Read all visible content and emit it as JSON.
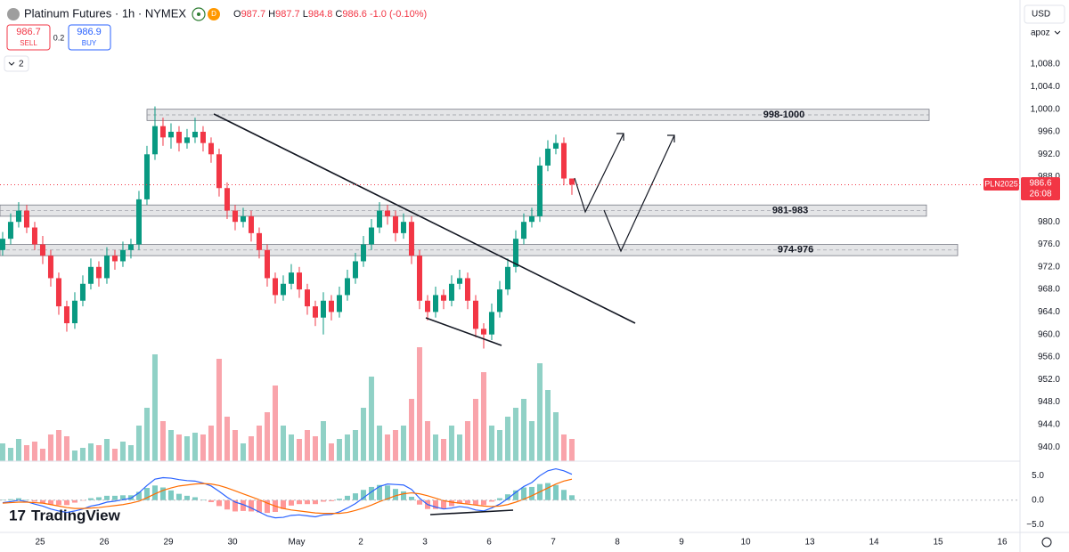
{
  "header": {
    "symbol": "Platinum Futures · 1h · NYMEX",
    "ohlc": [
      {
        "label": "O",
        "value": 987.7
      },
      {
        "label": "H",
        "value": 987.7
      },
      {
        "label": "L",
        "value": 984.8
      },
      {
        "label": "C",
        "value": 986.6
      }
    ],
    "change": "-1.0 (-0.10%)",
    "sell": {
      "price": 986.7,
      "label": "SELL"
    },
    "spread": 0.2,
    "buy": {
      "price": 986.9,
      "label": "BUY"
    },
    "indicators_count": 2,
    "currency": "USD",
    "user": "apoz",
    "brand": "TradingView"
  },
  "chart_data": {
    "type": "candlestick",
    "x": [
      0,
      1,
      2,
      3,
      4,
      5,
      6,
      7,
      8,
      9,
      10,
      11,
      12,
      13,
      14,
      15,
      16,
      17,
      18,
      19,
      20,
      21,
      22,
      23,
      24,
      25,
      26,
      27,
      28,
      29,
      30,
      31,
      32,
      33,
      34,
      35,
      36,
      37,
      38,
      39,
      40,
      41,
      42,
      43,
      44,
      45,
      46,
      47,
      48,
      49,
      50,
      51,
      52,
      53,
      54,
      55,
      56,
      57,
      58,
      59,
      60,
      61,
      62,
      63,
      64,
      65,
      66,
      67,
      68,
      69,
      70,
      71
    ],
    "open": [
      975,
      977,
      980,
      982,
      979,
      976,
      974,
      970,
      965,
      962,
      966,
      969,
      972,
      970,
      974,
      973,
      975,
      976,
      984,
      992,
      997,
      995,
      996,
      994,
      995,
      996,
      994,
      992,
      986,
      982,
      980,
      981,
      978,
      975,
      970,
      967,
      969,
      971,
      968,
      965,
      963,
      966,
      964,
      967,
      970,
      973,
      976,
      979,
      982,
      981,
      978,
      980,
      974,
      966,
      964,
      967,
      966,
      969,
      970,
      966,
      961,
      960,
      964,
      968,
      972,
      977,
      980,
      981,
      990,
      993,
      994,
      987.7
    ],
    "high": [
      978.2,
      981.5,
      983.5,
      983,
      980,
      977.5,
      975,
      971,
      966,
      967.5,
      970.5,
      973.5,
      973,
      975.5,
      975,
      976.5,
      977,
      985.5,
      993.5,
      1000.5,
      998.5,
      997.5,
      997,
      996.5,
      998.5,
      997,
      995,
      993,
      987,
      983,
      982.5,
      982,
      979,
      976,
      971,
      970.5,
      972.5,
      972,
      969,
      966,
      967.5,
      967,
      968.5,
      971.5,
      974.5,
      977.5,
      980.5,
      983.5,
      983,
      982,
      981.5,
      981,
      975,
      967,
      968.5,
      968,
      970.5,
      971.5,
      971,
      967,
      962,
      965.5,
      969.5,
      973.5,
      978.5,
      981.5,
      982.5,
      991.5,
      994.5,
      995.5,
      995,
      987.7
    ],
    "low": [
      974,
      976,
      979,
      978,
      975,
      972.5,
      968.5,
      963.5,
      960.5,
      961,
      965,
      968,
      968.5,
      969,
      971.5,
      972,
      973.5,
      975,
      983,
      991,
      993.5,
      993,
      992.5,
      993,
      994,
      992.5,
      990.5,
      984.5,
      980.5,
      978.5,
      979,
      976.5,
      973.5,
      968.5,
      965.5,
      966,
      968,
      966.5,
      963.5,
      961.5,
      960,
      962.5,
      963,
      966,
      969,
      972,
      975,
      978,
      979.5,
      976.5,
      977,
      972.5,
      964.5,
      962.5,
      963,
      964.5,
      965,
      968,
      964.5,
      959.5,
      957.5,
      959,
      963,
      967,
      971,
      976,
      979,
      980,
      989,
      992,
      986.5,
      984.8
    ],
    "close": [
      977,
      980,
      982,
      979,
      976,
      974,
      970,
      965,
      962,
      966,
      969,
      972,
      970,
      974,
      973,
      975,
      976,
      984,
      992,
      997,
      995,
      996,
      994,
      995,
      996,
      994,
      992,
      986,
      982,
      980,
      981,
      978,
      975,
      970,
      967,
      969,
      971,
      968,
      965,
      963,
      966,
      964,
      967,
      970,
      973,
      976,
      979,
      982,
      981,
      978,
      980,
      974,
      966,
      964,
      967,
      966,
      969,
      970,
      966,
      961,
      960,
      964,
      968,
      972,
      977,
      980,
      981,
      990,
      993,
      994,
      987.7,
      986.6
    ],
    "volume": [
      20,
      15,
      25,
      18,
      22,
      14,
      30,
      35,
      28,
      12,
      15,
      20,
      18,
      25,
      14,
      22,
      18,
      40,
      60,
      120,
      45,
      35,
      30,
      28,
      32,
      30,
      40,
      115,
      50,
      35,
      20,
      28,
      40,
      55,
      85,
      40,
      30,
      25,
      35,
      28,
      45,
      20,
      25,
      30,
      35,
      60,
      95,
      40,
      30,
      35,
      40,
      70,
      128,
      45,
      30,
      25,
      40,
      30,
      45,
      70,
      100,
      40,
      35,
      50,
      60,
      70,
      45,
      110,
      80,
      55,
      30,
      25
    ],
    "up_color": "#089981",
    "down_color": "#f23645",
    "xlim": [
      -0.33,
      126.89
    ],
    "xticks": [
      {
        "value": 4.67,
        "label": "25"
      },
      {
        "value": 12.67,
        "label": "26"
      },
      {
        "value": 20.67,
        "label": "29"
      },
      {
        "value": 28.67,
        "label": "30"
      },
      {
        "value": 36.67,
        "label": "May"
      },
      {
        "value": 44.67,
        "label": "2"
      },
      {
        "value": 52.67,
        "label": "3"
      },
      {
        "value": 60.67,
        "label": "6"
      },
      {
        "value": 68.67,
        "label": "7"
      },
      {
        "value": 76.67,
        "label": "8"
      },
      {
        "value": 84.67,
        "label": "9"
      },
      {
        "value": 92.67,
        "label": "10"
      },
      {
        "value": 100.67,
        "label": "13"
      },
      {
        "value": 108.67,
        "label": "14"
      },
      {
        "value": 116.67,
        "label": "15"
      },
      {
        "value": 124.67,
        "label": "16"
      }
    ],
    "ylim": [
      937.5,
      1019.4
    ],
    "yticks": [
      {
        "value": 1008,
        "label": "1,008.0"
      },
      {
        "value": 1004,
        "label": "1,004.0"
      },
      {
        "value": 1000,
        "label": "1,000.0"
      },
      {
        "value": 996,
        "label": "996.0"
      },
      {
        "value": 992,
        "label": "992.0"
      },
      {
        "value": 988,
        "label": "988.0"
      },
      {
        "value": 980,
        "label": "980.0"
      },
      {
        "value": 976,
        "label": "976.0"
      },
      {
        "value": 972,
        "label": "972.0"
      },
      {
        "value": 968,
        "label": "968.0"
      },
      {
        "value": 964,
        "label": "964.0"
      },
      {
        "value": 960,
        "label": "960.0"
      },
      {
        "value": 956,
        "label": "956.0"
      },
      {
        "value": 952,
        "label": "952.0"
      },
      {
        "value": 948,
        "label": "948.0"
      },
      {
        "value": 944,
        "label": "944.0"
      },
      {
        "value": 940,
        "label": "940.0"
      }
    ],
    "grid": false,
    "zones": [
      {
        "label": "998-1000",
        "low": 998,
        "high": 1000
      },
      {
        "label": "981-983",
        "low": 981,
        "high": 983
      },
      {
        "label": "974-976",
        "low": 974,
        "high": 976
      }
    ],
    "last_price": {
      "symbol": "PLN2025",
      "value": 986.6,
      "countdown": "26:08"
    },
    "macd": {
      "ylim": [
        -6.4,
        7.6
      ],
      "yticks": [
        {
          "value": 5,
          "label": "5.0"
        },
        {
          "value": 0,
          "label": "0.0"
        },
        {
          "value": -5,
          "label": "−5.0"
        }
      ],
      "macd_color": "#2962ff",
      "signal_color": "#ff6d00",
      "up_color": "#26a69a",
      "down_color": "#ff5252",
      "macd": [
        -0.5,
        -0.3,
        0,
        -0.3,
        -0.8,
        -1.2,
        -1.8,
        -2.2,
        -2.5,
        -2.2,
        -1.8,
        -1.2,
        -0.9,
        -0.4,
        -0.2,
        0.1,
        0.4,
        1.5,
        3.0,
        4.3,
        4.6,
        4.5,
        4.2,
        4.0,
        3.9,
        3.5,
        2.9,
        1.8,
        0.6,
        -0.4,
        -0.9,
        -1.6,
        -2.4,
        -3.2,
        -3.6,
        -3.5,
        -3.1,
        -3.0,
        -3.2,
        -3.4,
        -3.0,
        -2.9,
        -2.4,
        -1.6,
        -0.7,
        0.5,
        1.7,
        2.8,
        3.3,
        3.2,
        3.1,
        2.2,
        0.4,
        -0.9,
        -1.4,
        -1.8,
        -1.6,
        -1.3,
        -1.5,
        -2.0,
        -2.2,
        -1.6,
        -0.8,
        0.3,
        1.6,
        2.8,
        3.6,
        5.0,
        6.0,
        6.4,
        6.0,
        5.3
      ],
      "signal": [
        -0.6,
        -0.5,
        -0.4,
        -0.4,
        -0.5,
        -0.6,
        -0.9,
        -1.2,
        -1.5,
        -1.7,
        -1.7,
        -1.6,
        -1.5,
        -1.3,
        -1.1,
        -0.9,
        -0.6,
        -0.2,
        0.5,
        1.3,
        2.0,
        2.5,
        2.9,
        3.1,
        3.3,
        3.4,
        3.3,
        3.0,
        2.5,
        1.9,
        1.3,
        0.7,
        0.1,
        -0.6,
        -1.2,
        -1.7,
        -2.0,
        -2.2,
        -2.4,
        -2.6,
        -2.7,
        -2.7,
        -2.7,
        -2.5,
        -2.1,
        -1.6,
        -1.0,
        -0.3,
        0.3,
        0.9,
        1.3,
        1.5,
        1.3,
        0.9,
        0.4,
        -0.1,
        -0.4,
        -0.6,
        -0.8,
        -1.0,
        -1.2,
        -1.3,
        -1.2,
        -0.9,
        -0.4,
        0.2,
        0.9,
        1.7,
        2.5,
        3.3,
        3.9,
        4.3
      ],
      "histogram": [
        0.1,
        0.2,
        0.4,
        0.1,
        -0.3,
        -0.6,
        -0.9,
        -1.0,
        -1.0,
        -0.5,
        -0.1,
        0.4,
        0.6,
        0.9,
        0.9,
        1.0,
        1.0,
        1.7,
        2.5,
        3.0,
        2.6,
        2.0,
        1.3,
        0.9,
        0.6,
        0.1,
        -0.4,
        -1.2,
        -1.9,
        -2.3,
        -2.2,
        -2.3,
        -2.5,
        -2.6,
        -2.4,
        -1.8,
        -1.1,
        -0.8,
        -0.8,
        -0.8,
        -0.3,
        -0.2,
        0.3,
        0.9,
        1.4,
        2.1,
        2.7,
        3.1,
        3.0,
        2.3,
        1.8,
        0.7,
        -0.9,
        -1.8,
        -1.8,
        -1.7,
        -1.2,
        -0.7,
        -0.7,
        -1.0,
        -1.0,
        -0.3,
        0.4,
        1.2,
        2.0,
        2.6,
        2.7,
        3.3,
        3.5,
        3.1,
        2.1,
        1.0
      ]
    }
  }
}
